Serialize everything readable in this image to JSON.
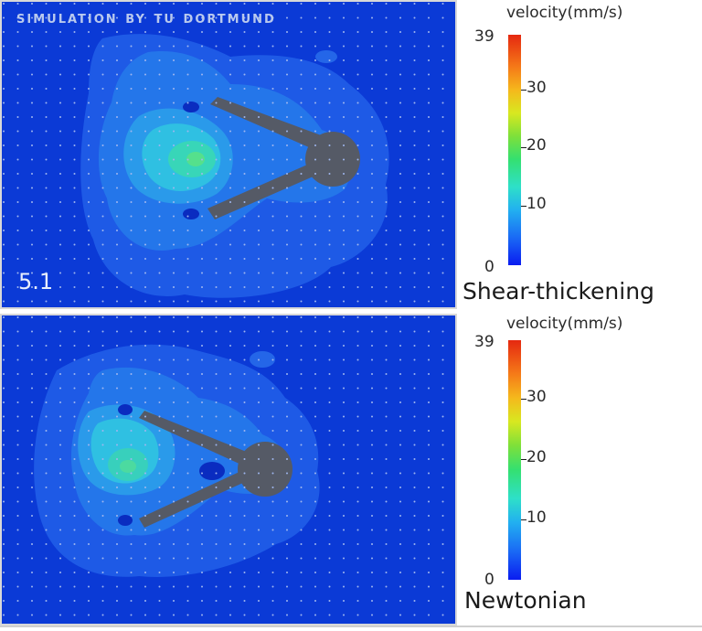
{
  "figure": {
    "banner": "SIMULATION BY TU DORTMUND",
    "frame_label": "5.1"
  },
  "panels": [
    {
      "fluid": "Shear-thickening",
      "colorbar_title": "velocity(mm/s)",
      "colorbar_max": "39",
      "colorbar_min": "0",
      "ticks": [
        "30",
        "20",
        "10"
      ]
    },
    {
      "fluid": "Newtonian",
      "colorbar_title": "velocity(mm/s)",
      "colorbar_max": "39",
      "colorbar_min": "0",
      "ticks": [
        "30",
        "20",
        "10"
      ]
    }
  ],
  "colors": {
    "background_flow": "#0b3ad6",
    "body_gray": "#555a66",
    "low": "#1e62e8",
    "mid": "#27b0e8",
    "high": "#3ad0b0"
  }
}
